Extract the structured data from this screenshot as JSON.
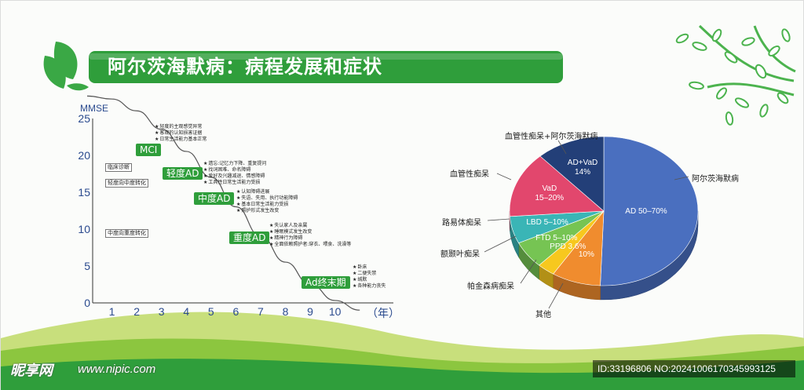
{
  "title": "阿尔茨海默病：病程发展和症状",
  "colors": {
    "brand_green": "#2f9e3b",
    "axis_text": "#2a4a8e"
  },
  "chart_data": [
    {
      "type": "line",
      "ylabel": "MMSE",
      "xlabel": "（年）",
      "x_ticks": [
        "1",
        "2",
        "3",
        "4",
        "5",
        "6",
        "7",
        "8",
        "9",
        "10"
      ],
      "y_ticks": [
        "25",
        "20",
        "15",
        "10",
        "5",
        "0"
      ],
      "ylim": [
        -3,
        29
      ],
      "xlim": [
        0,
        11.5
      ],
      "series": [
        {
          "x": [
            0,
            1,
            2,
            3,
            4,
            5,
            6,
            7,
            8,
            9,
            10,
            11
          ],
          "values": [
            28,
            27.6,
            26,
            23.5,
            20.5,
            17,
            13,
            9,
            5.5,
            2.5,
            0.3,
            -1
          ]
        }
      ],
      "stages": [
        {
          "label": "MCI",
          "notes": [
            "轻度的主观感觉异常",
            "客观的认知损害证据",
            "日常生活能力基本正常"
          ]
        },
        {
          "label": "轻度AD",
          "notes": [
            "遗忘:记忆力下降、重复提问",
            "找词困难、命名障碍",
            "爱好及兴趣减退、情感障碍",
            "工具性日常生活能力受损"
          ]
        },
        {
          "label": "中度AD",
          "notes": [
            "认知障碍进展",
            "失语、失用、执行功能障碍",
            "基本日常生活能力受损",
            "照护形式发生改变"
          ]
        },
        {
          "label": "重度AD",
          "notes": [
            "失认家人及亲属",
            "睡眠模式发生改变",
            "精神行为障碍",
            "全面依赖照护者:穿衣、喂食、洗澡等"
          ]
        },
        {
          "label": "Ad终末期",
          "notes": [
            "卧床",
            "二便失禁",
            "缄默",
            "各种能力丧失"
          ]
        }
      ],
      "side_labels": [
        "临床诊断",
        "轻度向中度转化",
        "中度向重度转化"
      ]
    },
    {
      "type": "pie",
      "slices": [
        {
          "name": "阿尔茨海默病",
          "inner": "AD 50–70%",
          "value": 60,
          "color": "#4a6fbf"
        },
        {
          "name": "其他",
          "inner": "10%",
          "value": 10,
          "color": "#f08c2e"
        },
        {
          "name": "帕金森病痴呆",
          "inner": "PPD 3.6%",
          "value": 3.6,
          "color": "#f7c81e"
        },
        {
          "name": "额颞叶痴呆",
          "inner": "FTD 5–10%",
          "value": 7,
          "color": "#76c453"
        },
        {
          "name": "路易体痴呆",
          "inner": "LBD 5–10%",
          "value": 7,
          "color": "#3ab5b6"
        },
        {
          "name": "血管性痴呆",
          "inner": "VaD\n15–20%",
          "value": 17,
          "color": "#e2476d"
        },
        {
          "name": "血管性痴呆+阿尔茨海默病",
          "inner": "AD+VaD\n14%",
          "value": 14,
          "color": "#233f78"
        }
      ]
    }
  ],
  "watermark": {
    "site_cn": "昵享网",
    "site_url": "www.nipic.com",
    "id_text": "ID:33196806 NO:20241006170345993125"
  }
}
